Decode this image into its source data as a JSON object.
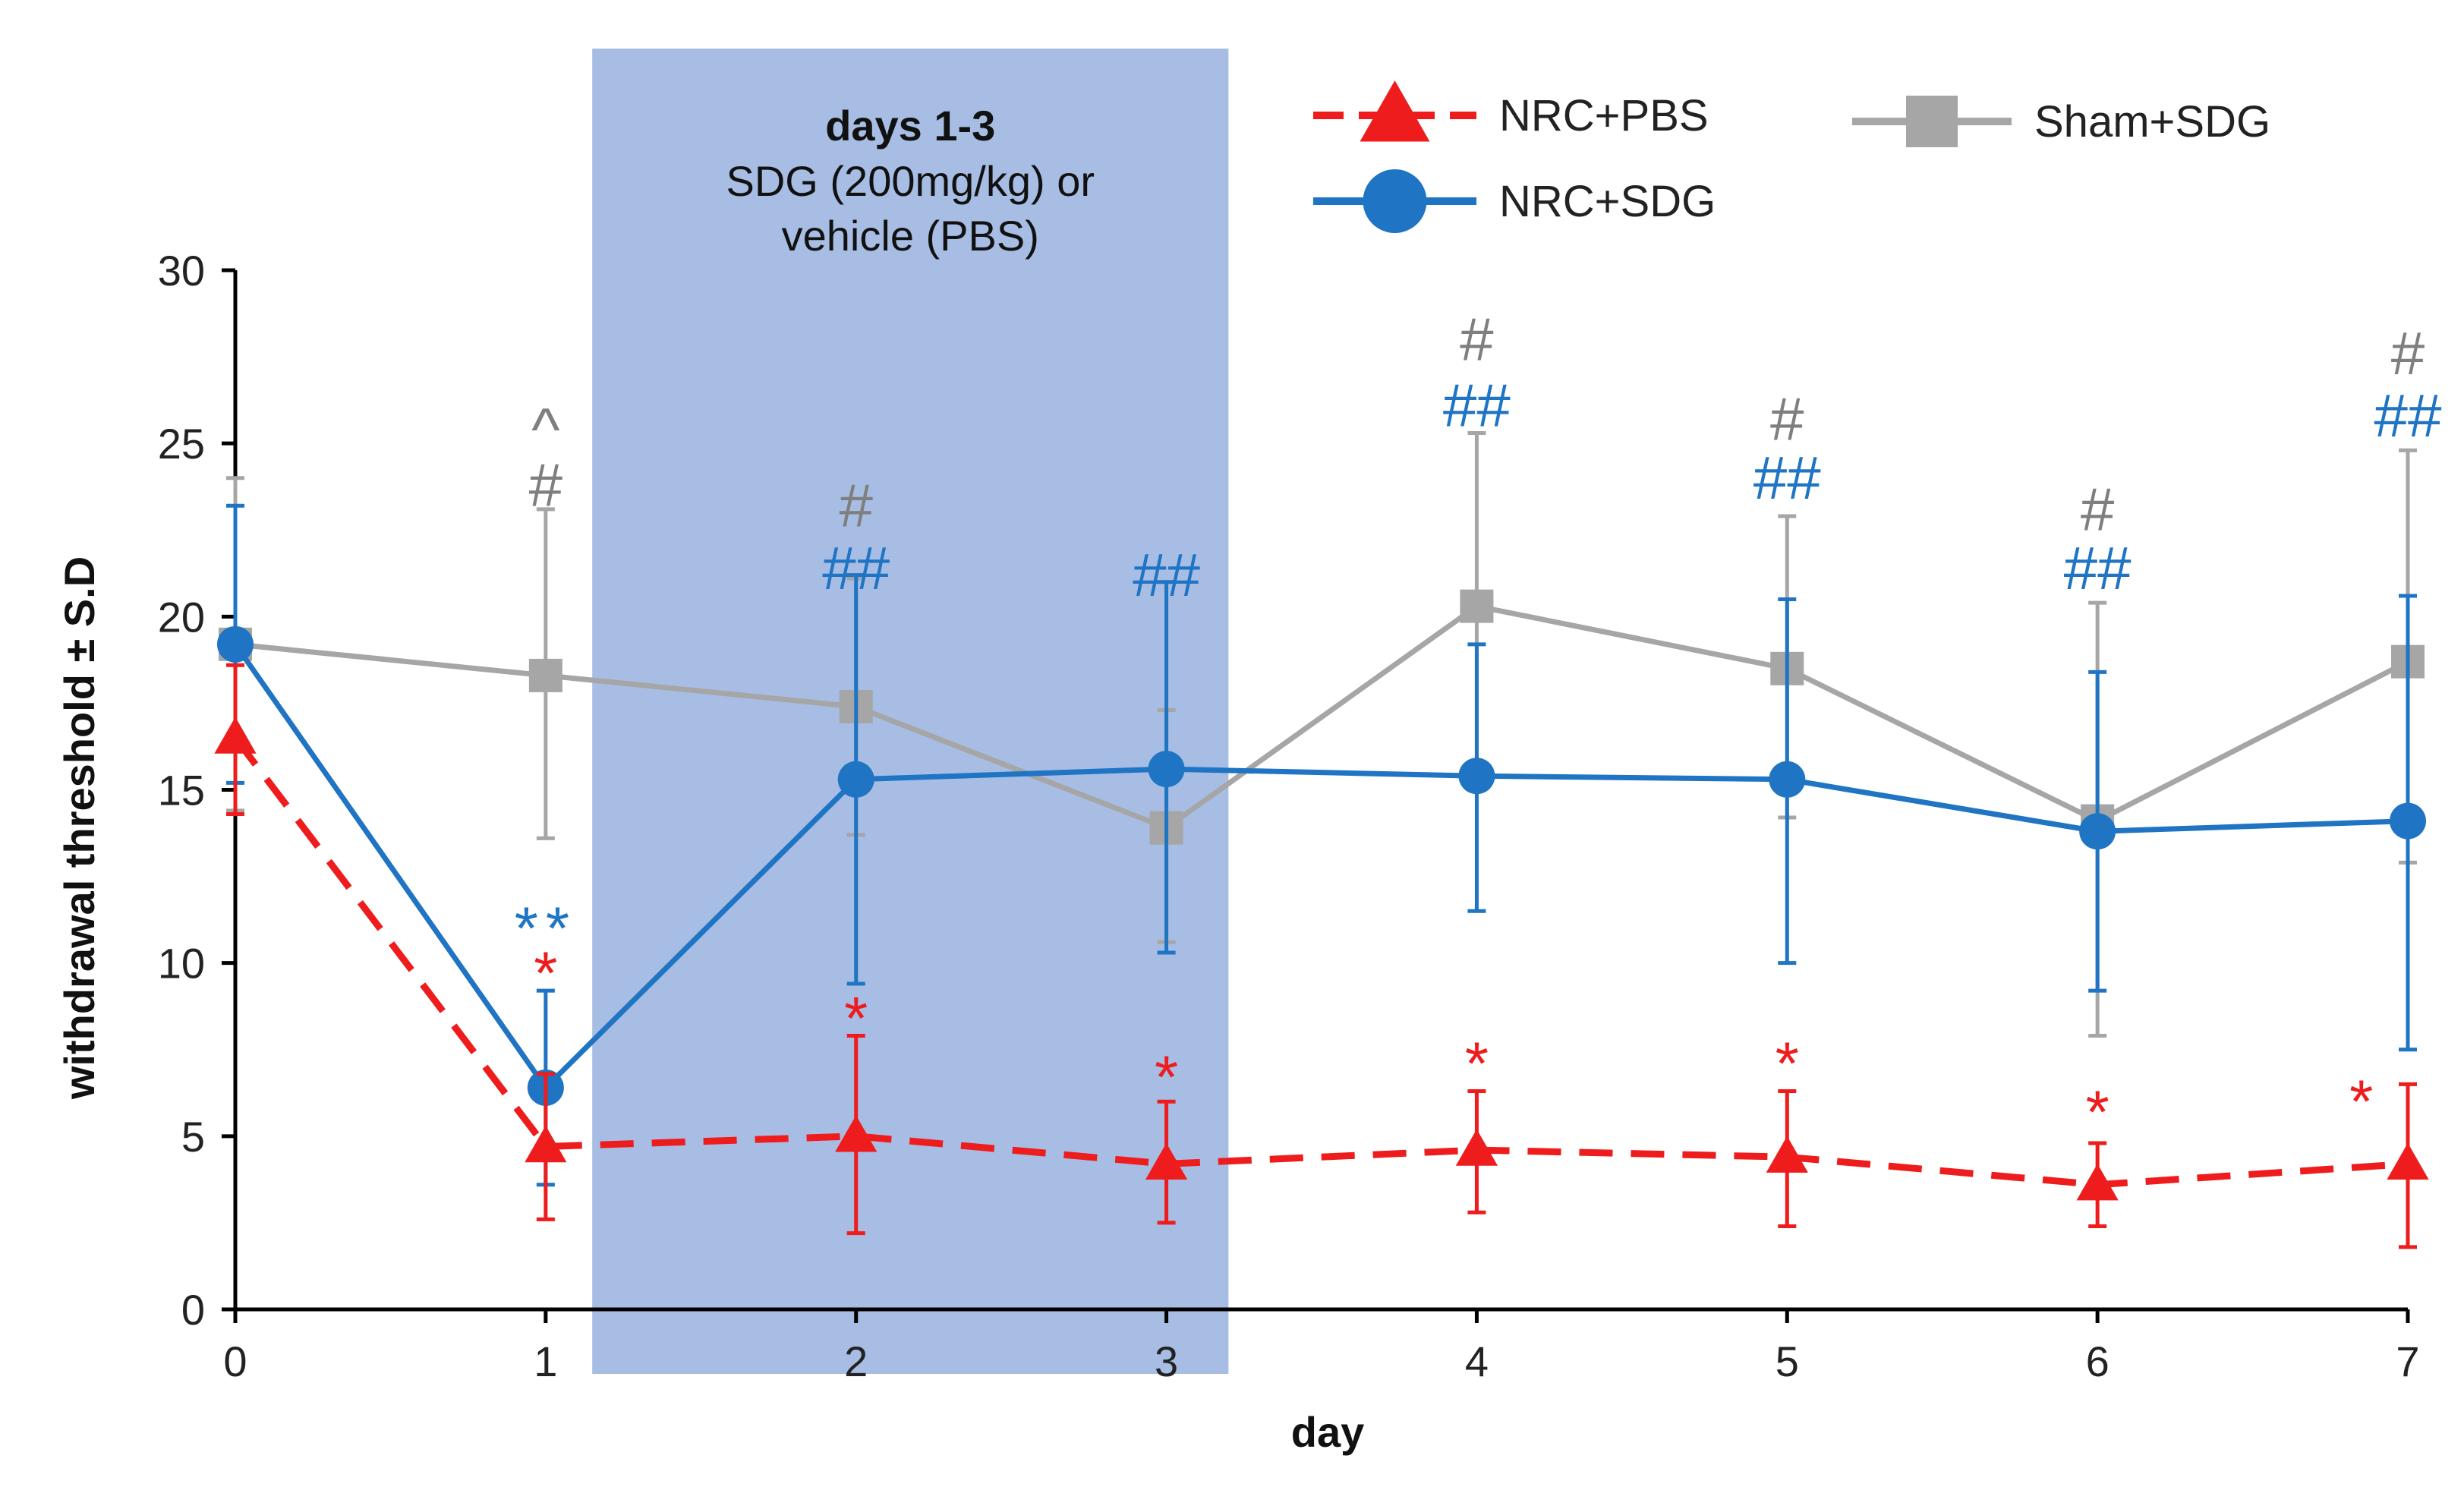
{
  "chart_data": {
    "type": "line",
    "title": "",
    "xlabel": "day",
    "ylabel": "withdrawal threshold ± S.D",
    "x": [
      0,
      1,
      2,
      3,
      4,
      5,
      6,
      7
    ],
    "x_ticks": [
      "0",
      "1",
      "2",
      "3",
      "4",
      "5",
      "6",
      "7"
    ],
    "y_ticks": [
      "0",
      "5",
      "10",
      "15",
      "20",
      "25",
      "30"
    ],
    "xlim": [
      0,
      7
    ],
    "ylim": [
      0,
      30
    ],
    "grid": false,
    "legend_position": "top",
    "treatment_window": {
      "from_day": 1.15,
      "to_day": 3.2,
      "title": "days 1-3",
      "line1": "SDG (200mg/kg) or",
      "line2": "vehicle (PBS)",
      "color": "#a7bde4"
    },
    "series": [
      {
        "name": "NRC+PBS",
        "color": "#ee1c1c",
        "marker": "triangle",
        "line": "dashed",
        "values": [
          16.5,
          4.7,
          5.0,
          4.2,
          4.6,
          4.4,
          3.6,
          4.2
        ],
        "err_low": [
          14.3,
          2.6,
          2.2,
          2.5,
          2.8,
          2.4,
          2.4,
          1.8
        ],
        "err_high": [
          18.6,
          6.8,
          7.9,
          6.0,
          6.3,
          6.3,
          4.8,
          6.5
        ]
      },
      {
        "name": "NRC+SDG",
        "color": "#1f74c4",
        "marker": "circle",
        "line": "solid",
        "values": [
          19.2,
          6.4,
          15.3,
          15.6,
          15.4,
          15.3,
          13.8,
          14.1
        ],
        "err_low": [
          15.2,
          3.6,
          9.4,
          10.3,
          11.5,
          10.0,
          9.2,
          7.5
        ],
        "err_high": [
          23.2,
          9.2,
          21.2,
          21.0,
          19.2,
          20.5,
          18.4,
          20.6
        ]
      },
      {
        "name": "Sham+SDG",
        "color": "#a6a6a6",
        "marker": "square",
        "line": "solid",
        "values": [
          19.2,
          18.3,
          17.4,
          13.9,
          20.3,
          18.5,
          14.1,
          18.7
        ],
        "err_low": [
          14.4,
          13.6,
          13.7,
          10.6,
          15.5,
          14.2,
          7.9,
          12.9
        ],
        "err_high": [
          24.0,
          23.1,
          21.1,
          17.3,
          25.3,
          22.9,
          20.4,
          24.8
        ]
      }
    ],
    "annotations": [
      {
        "day": 1,
        "y": 24.8,
        "text": "^",
        "color": "#7f7f7f"
      },
      {
        "day": 1,
        "y": 23.2,
        "text": "#",
        "color": "#7f7f7f"
      },
      {
        "day": 1,
        "y": 10.4,
        "text": "**",
        "color": "#1f74c4"
      },
      {
        "day": 1,
        "y": 9.1,
        "text": "*",
        "color": "#ee1c1c"
      },
      {
        "day": 2,
        "y": 22.6,
        "text": "#",
        "color": "#7f7f7f"
      },
      {
        "day": 2,
        "y": 20.8,
        "text": "##",
        "color": "#1f74c4"
      },
      {
        "day": 2,
        "y": 7.8,
        "text": "*",
        "color": "#ee1c1c"
      },
      {
        "day": 3,
        "y": 20.6,
        "text": "##",
        "color": "#1f74c4"
      },
      {
        "day": 3,
        "y": 6.1,
        "text": "*",
        "color": "#ee1c1c"
      },
      {
        "day": 4,
        "y": 27.4,
        "text": "#",
        "color": "#7f7f7f"
      },
      {
        "day": 4,
        "y": 25.5,
        "text": "##",
        "color": "#1f74c4"
      },
      {
        "day": 4,
        "y": 6.5,
        "text": "*",
        "color": "#ee1c1c"
      },
      {
        "day": 5,
        "y": 25.1,
        "text": "#",
        "color": "#7f7f7f"
      },
      {
        "day": 5,
        "y": 23.4,
        "text": "##",
        "color": "#1f74c4"
      },
      {
        "day": 5,
        "y": 6.5,
        "text": "*",
        "color": "#ee1c1c"
      },
      {
        "day": 6,
        "y": 22.5,
        "text": "#",
        "color": "#7f7f7f"
      },
      {
        "day": 6,
        "y": 20.8,
        "text": "##",
        "color": "#1f74c4"
      },
      {
        "day": 6,
        "y": 5.1,
        "text": "*",
        "color": "#ee1c1c"
      },
      {
        "day": 7,
        "y": 27.0,
        "text": "#",
        "color": "#7f7f7f"
      },
      {
        "day": 7,
        "y": 25.2,
        "text": "##",
        "color": "#1f74c4"
      },
      {
        "day": 7,
        "y": 5.4,
        "text": "*",
        "color": "#ee1c1c",
        "dx": -1
      }
    ]
  }
}
